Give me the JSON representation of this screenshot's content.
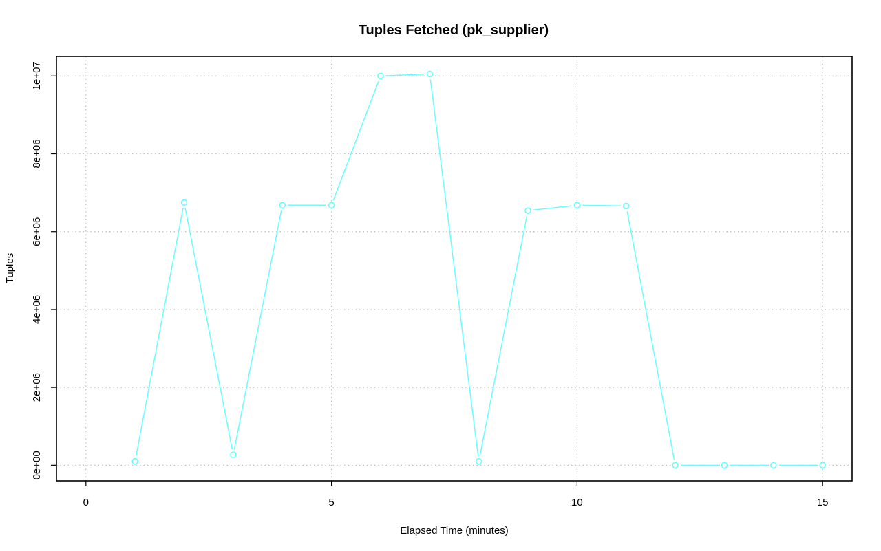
{
  "chart_data": {
    "type": "line",
    "title": "Tuples Fetched (pk_supplier)",
    "xlabel": "Elapsed Time (minutes)",
    "ylabel": "Tuples",
    "xlim": [
      -0.6,
      15.6
    ],
    "ylim": [
      -400000,
      10500000
    ],
    "x_ticks": [
      0,
      5,
      10,
      15
    ],
    "x_tick_labels": [
      "0",
      "5",
      "10",
      "15"
    ],
    "y_ticks": [
      0,
      2000000,
      4000000,
      6000000,
      8000000,
      10000000
    ],
    "y_tick_labels": [
      "0e+00",
      "2e+06",
      "4e+06",
      "6e+06",
      "8e+06",
      "1e+07"
    ],
    "grid": true,
    "color": "#66ffff",
    "x": [
      1,
      2,
      3,
      4,
      5,
      6,
      7,
      8,
      9,
      10,
      11,
      12,
      13,
      14,
      15
    ],
    "series": [
      {
        "values": [
          100000,
          6750000,
          270000,
          6680000,
          6680000,
          10000000,
          10050000,
          100000,
          6540000,
          6680000,
          6660000,
          0,
          0,
          0,
          0
        ]
      }
    ]
  }
}
